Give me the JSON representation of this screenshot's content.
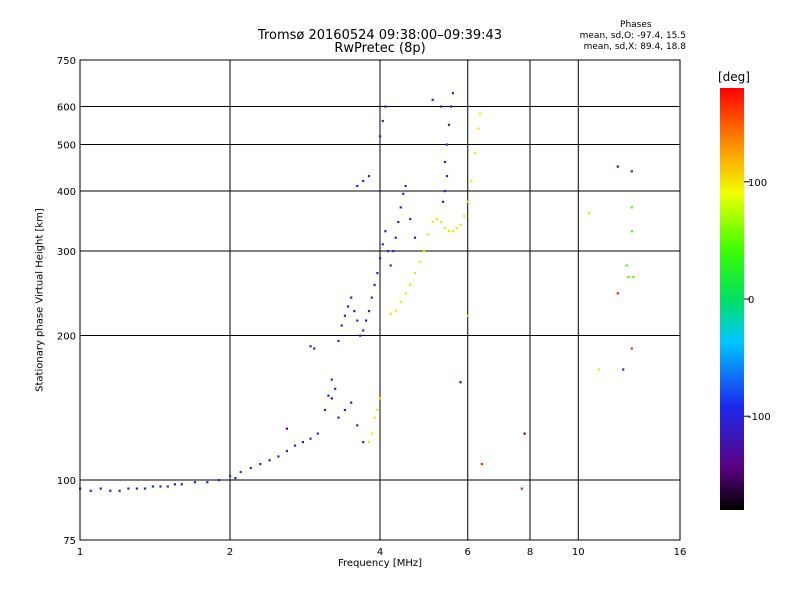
{
  "header": {
    "title_line1": "Tromsø 20160524 09:38:00–09:39:43",
    "title_line2": "RwPretec (8p)",
    "phases_heading": "Phases",
    "phases_o": "mean, sd,O: -97.4, 15.5",
    "phases_x": "mean, sd,X: 89.4, 18.8"
  },
  "colorbar": {
    "unit": "[deg]",
    "range": [
      -180,
      180
    ],
    "ticks": [
      "100",
      "0",
      "-100"
    ],
    "tick_values": [
      100,
      0,
      -100
    ],
    "colormap": "rainbow: black → violet → blue → cyan → green → yellow → orange → red"
  },
  "chart_data": {
    "type": "scatter",
    "title": "Tromsø 20160524 09:38:00–09:39:43",
    "subtitle": "RwPretec (8p)",
    "xlabel": "Frequency [MHz]",
    "ylabel": "Stationary phase Virtual Height [km]",
    "xscale": "log",
    "yscale": "log",
    "xlim": [
      1,
      16
    ],
    "ylim": [
      75,
      750
    ],
    "x_ticks": [
      1,
      2,
      4,
      6,
      8,
      10,
      16
    ],
    "x_tick_labels": [
      "1",
      "2",
      "4",
      "6",
      "8",
      "10",
      "16"
    ],
    "y_ticks": [
      75,
      100,
      200,
      300,
      400,
      500,
      600,
      750
    ],
    "y_tick_labels": [
      "75",
      "100",
      "200",
      "300",
      "400",
      "500",
      "600",
      "750"
    ],
    "grid": true,
    "series": [
      {
        "phase_deg": -100,
        "points": [
          [
            1.0,
            96
          ],
          [
            1.05,
            95
          ],
          [
            1.1,
            96
          ],
          [
            1.15,
            95
          ],
          [
            1.2,
            95
          ],
          [
            1.25,
            96
          ],
          [
            1.3,
            96
          ],
          [
            1.35,
            96
          ],
          [
            1.4,
            97
          ],
          [
            1.45,
            97
          ],
          [
            1.5,
            97
          ],
          [
            1.55,
            98
          ],
          [
            1.6,
            98
          ],
          [
            1.7,
            99
          ],
          [
            1.8,
            99
          ],
          [
            1.9,
            100
          ],
          [
            2.0,
            102
          ],
          [
            2.05,
            101
          ],
          [
            2.1,
            104
          ],
          [
            2.2,
            106
          ],
          [
            2.3,
            108
          ],
          [
            2.4,
            110
          ],
          [
            2.5,
            112
          ],
          [
            2.6,
            115
          ],
          [
            2.7,
            118
          ],
          [
            2.8,
            120
          ],
          [
            2.9,
            122
          ],
          [
            3.0,
            125
          ],
          [
            3.1,
            140
          ],
          [
            3.15,
            150
          ],
          [
            3.2,
            162
          ],
          [
            3.25,
            155
          ],
          [
            3.3,
            135
          ],
          [
            3.4,
            140
          ],
          [
            3.5,
            145
          ],
          [
            3.6,
            130
          ],
          [
            3.7,
            120
          ],
          [
            3.3,
            195
          ],
          [
            3.35,
            210
          ],
          [
            3.4,
            220
          ],
          [
            3.45,
            230
          ],
          [
            3.5,
            240
          ],
          [
            3.55,
            225
          ],
          [
            3.6,
            215
          ],
          [
            3.65,
            200
          ],
          [
            3.7,
            205
          ],
          [
            3.75,
            215
          ],
          [
            3.8,
            225
          ],
          [
            3.85,
            240
          ],
          [
            3.9,
            255
          ],
          [
            3.95,
            270
          ],
          [
            4.0,
            290
          ],
          [
            4.05,
            310
          ],
          [
            4.1,
            330
          ],
          [
            4.15,
            300
          ],
          [
            4.2,
            280
          ],
          [
            4.25,
            300
          ],
          [
            4.3,
            320
          ],
          [
            4.35,
            345
          ],
          [
            4.4,
            370
          ],
          [
            4.45,
            395
          ],
          [
            4.5,
            410
          ],
          [
            4.6,
            350
          ],
          [
            4.7,
            320
          ],
          [
            4.0,
            520
          ],
          [
            4.05,
            560
          ],
          [
            4.1,
            600
          ],
          [
            5.1,
            620
          ],
          [
            5.3,
            600
          ],
          [
            5.4,
            460
          ],
          [
            5.45,
            500
          ],
          [
            5.5,
            550
          ],
          [
            5.55,
            600
          ],
          [
            5.6,
            640
          ],
          [
            5.45,
            430
          ],
          [
            5.4,
            400
          ],
          [
            5.35,
            380
          ],
          [
            3.6,
            410
          ],
          [
            3.7,
            420
          ],
          [
            3.8,
            430
          ],
          [
            2.9,
            190
          ],
          [
            2.95,
            188
          ],
          [
            12.3,
            170
          ],
          [
            12.8,
            440
          ]
        ]
      },
      {
        "phase_deg": 100,
        "points": [
          [
            3.8,
            120
          ],
          [
            3.85,
            125
          ],
          [
            3.9,
            135
          ],
          [
            3.95,
            140
          ],
          [
            4.0,
            148
          ],
          [
            4.2,
            222
          ],
          [
            4.3,
            225
          ],
          [
            4.4,
            235
          ],
          [
            4.5,
            245
          ],
          [
            4.6,
            255
          ],
          [
            4.7,
            270
          ],
          [
            4.8,
            285
          ],
          [
            4.9,
            300
          ],
          [
            5.0,
            325
          ],
          [
            5.1,
            345
          ],
          [
            5.2,
            350
          ],
          [
            5.3,
            345
          ],
          [
            5.4,
            335
          ],
          [
            5.5,
            330
          ],
          [
            5.6,
            330
          ],
          [
            5.7,
            335
          ],
          [
            5.8,
            340
          ],
          [
            5.9,
            355
          ],
          [
            6.0,
            380
          ],
          [
            6.1,
            420
          ],
          [
            6.2,
            480
          ],
          [
            6.3,
            540
          ],
          [
            6.35,
            580
          ],
          [
            10.5,
            360
          ],
          [
            11.0,
            170
          ],
          [
            6.0,
            220
          ]
        ]
      },
      {
        "phase_deg": 40,
        "points": [
          [
            12.8,
            370
          ],
          [
            12.8,
            330
          ],
          [
            12.5,
            280
          ],
          [
            12.6,
            265
          ],
          [
            12.9,
            265
          ]
        ]
      },
      {
        "phase_deg": 170,
        "points": [
          [
            6.4,
            108
          ],
          [
            7.7,
            96
          ],
          [
            12.0,
            245
          ],
          [
            12.8,
            188
          ]
        ]
      },
      {
        "phase_deg": -140,
        "points": [
          [
            2.6,
            128
          ],
          [
            3.2,
            148
          ],
          [
            7.8,
            125
          ],
          [
            12.0,
            450
          ],
          [
            5.8,
            160
          ]
        ]
      }
    ]
  }
}
